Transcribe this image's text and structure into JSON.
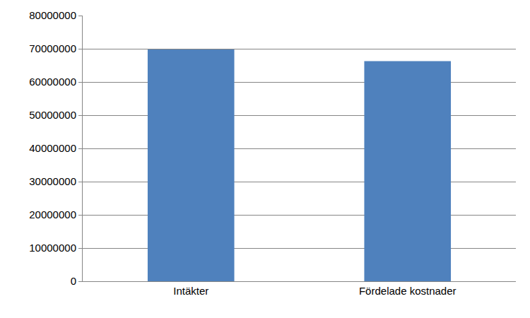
{
  "chart_data": {
    "type": "bar",
    "categories": [
      "Intäkter",
      "Fördelade kostnader"
    ],
    "values": [
      69800000,
      66300000
    ],
    "color": "#4f81bd",
    "ylim": [
      0,
      80000000
    ],
    "yticks": [
      0,
      10000000,
      20000000,
      30000000,
      40000000,
      50000000,
      60000000,
      70000000,
      80000000
    ],
    "grid": true
  }
}
